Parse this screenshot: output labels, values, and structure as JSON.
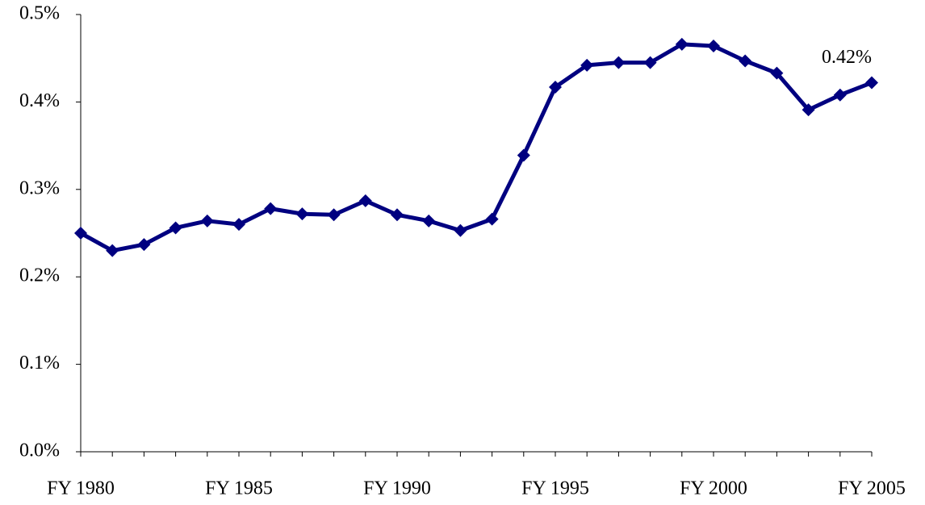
{
  "chart_data": {
    "type": "line",
    "categories": [
      "FY 1980",
      null,
      null,
      null,
      null,
      "FY 1985",
      null,
      null,
      null,
      null,
      "FY 1990",
      null,
      null,
      null,
      null,
      "FY 1995",
      null,
      null,
      null,
      null,
      "FY 2000",
      null,
      null,
      null,
      null,
      "FY 2005"
    ],
    "values": [
      0.25,
      0.23,
      0.237,
      0.256,
      0.264,
      0.26,
      0.278,
      0.272,
      0.271,
      0.287,
      0.271,
      0.264,
      0.253,
      0.266,
      0.339,
      0.417,
      0.442,
      0.445,
      0.445,
      0.466,
      0.464,
      0.447,
      0.433,
      0.391,
      0.408,
      0.422
    ],
    "value_labels": [
      null,
      null,
      null,
      null,
      null,
      null,
      null,
      null,
      null,
      null,
      null,
      null,
      null,
      null,
      null,
      null,
      null,
      null,
      null,
      null,
      null,
      null,
      null,
      null,
      null,
      "0.42%"
    ],
    "color": "#000080",
    "ylim": [
      0,
      0.5
    ],
    "yticks": [
      {
        "value": 0,
        "label": "0.0%"
      },
      {
        "value": 0.1,
        "label": "0.1%"
      },
      {
        "value": 0.2,
        "label": "0.2%"
      },
      {
        "value": 0.3,
        "label": "0.3%"
      },
      {
        "value": 0.4,
        "label": "0.4%"
      },
      {
        "value": 0.5,
        "label": "0.5%"
      }
    ],
    "grid": false
  }
}
